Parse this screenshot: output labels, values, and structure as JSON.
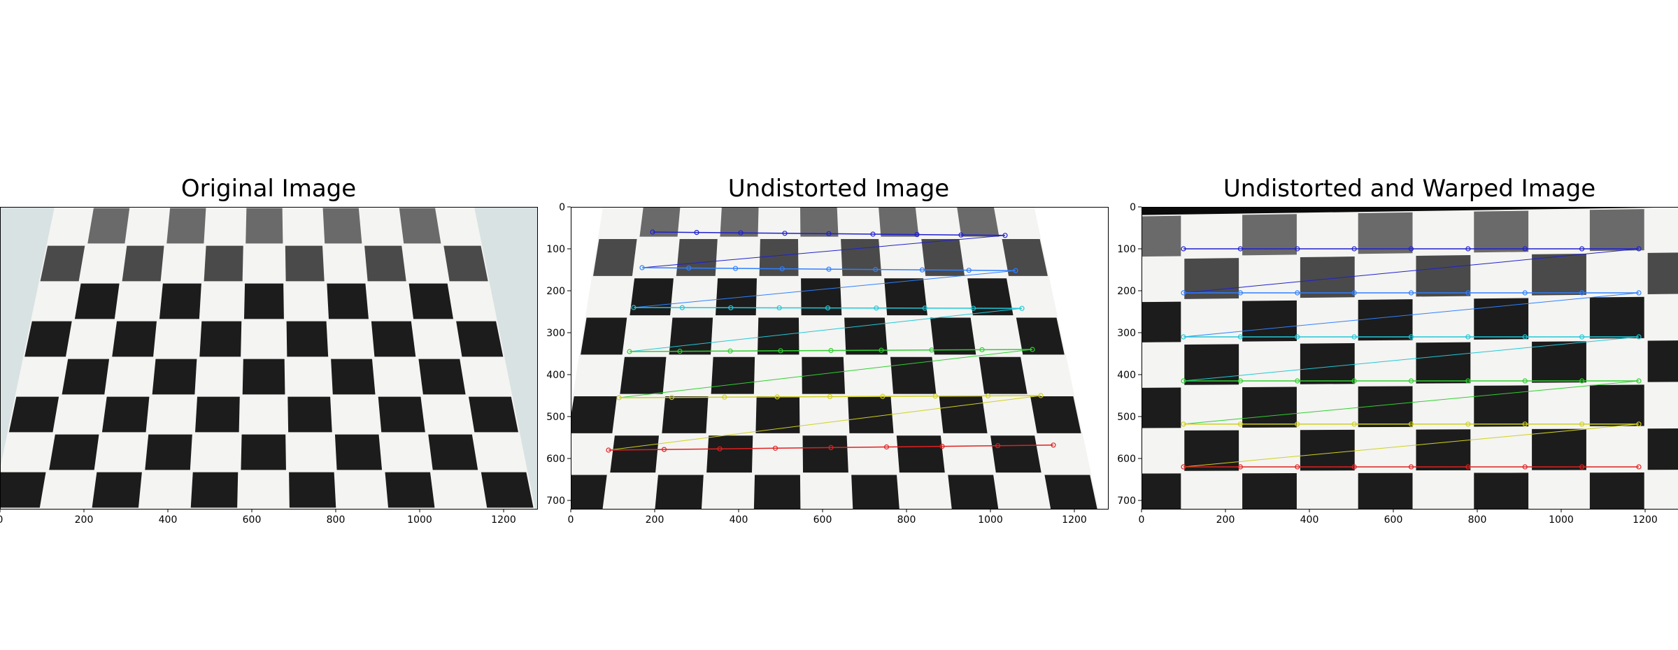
{
  "figure": {
    "panels": [
      {
        "id": "original",
        "title": "Original Image",
        "x_ticks": [
          "0",
          "200",
          "400",
          "600",
          "800",
          "1000",
          "1200"
        ],
        "y_ticks": [],
        "image": "distorted-checkerboard-photo"
      },
      {
        "id": "undistorted",
        "title": "Undistorted Image",
        "x_ticks": [
          "0",
          "200",
          "400",
          "600",
          "800",
          "1000",
          "1200"
        ],
        "y_ticks": [
          "0",
          "100",
          "200",
          "300",
          "400",
          "500",
          "600",
          "700"
        ],
        "image": "undistorted-checkerboard-with-corners"
      },
      {
        "id": "warped",
        "title": "Undistorted and Warped Image",
        "x_ticks": [
          "0",
          "200",
          "400",
          "600",
          "800",
          "1000",
          "1200"
        ],
        "y_ticks": [
          "0",
          "100",
          "200",
          "300",
          "400",
          "500",
          "600",
          "700"
        ],
        "image": "warped-checkerboard-with-corners"
      }
    ],
    "corner_row_colors": [
      "#2020d0",
      "#3080ff",
      "#20c8d8",
      "#30d030",
      "#d0d020",
      "#e02020"
    ]
  }
}
